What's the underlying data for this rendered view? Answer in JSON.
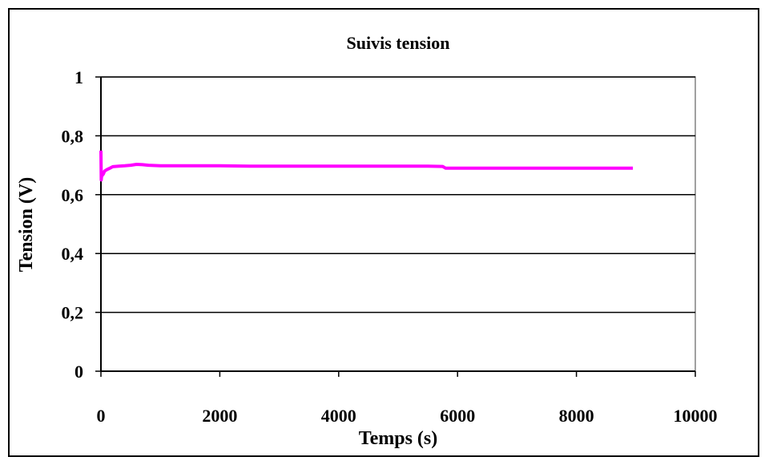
{
  "chart_data": {
    "type": "line",
    "title": "Suivis tension",
    "xlabel": "Temps (s)",
    "ylabel": "Tension (V)",
    "xlim": [
      0,
      10000
    ],
    "ylim": [
      0,
      1
    ],
    "x_ticks": [
      0,
      2000,
      4000,
      6000,
      8000,
      10000
    ],
    "x_tick_labels": [
      "0",
      "2000",
      "4000",
      "6000",
      "8000",
      "10000"
    ],
    "y_ticks": [
      0,
      0.2,
      0.4,
      0.6,
      0.8,
      1
    ],
    "y_tick_labels": [
      "0",
      "0,2",
      "0,4",
      "0,6",
      "0,8",
      "1"
    ],
    "grid": "horizontal",
    "legend": "none",
    "series": [
      {
        "color": "#ff00ff",
        "x": [
          0,
          5,
          10,
          20,
          40,
          60,
          100,
          150,
          200,
          300,
          400,
          500,
          600,
          700,
          800,
          1000,
          1500,
          2000,
          2500,
          3000,
          3500,
          4000,
          4500,
          5000,
          5500,
          5750,
          5800,
          6000,
          6500,
          7000,
          7500,
          8000,
          8500,
          8950
        ],
        "y": [
          0.75,
          0.65,
          0.66,
          0.665,
          0.67,
          0.68,
          0.685,
          0.69,
          0.695,
          0.697,
          0.698,
          0.7,
          0.703,
          0.702,
          0.7,
          0.698,
          0.698,
          0.698,
          0.697,
          0.697,
          0.697,
          0.697,
          0.697,
          0.697,
          0.697,
          0.696,
          0.69,
          0.69,
          0.69,
          0.69,
          0.69,
          0.69,
          0.69,
          0.69
        ]
      }
    ]
  }
}
